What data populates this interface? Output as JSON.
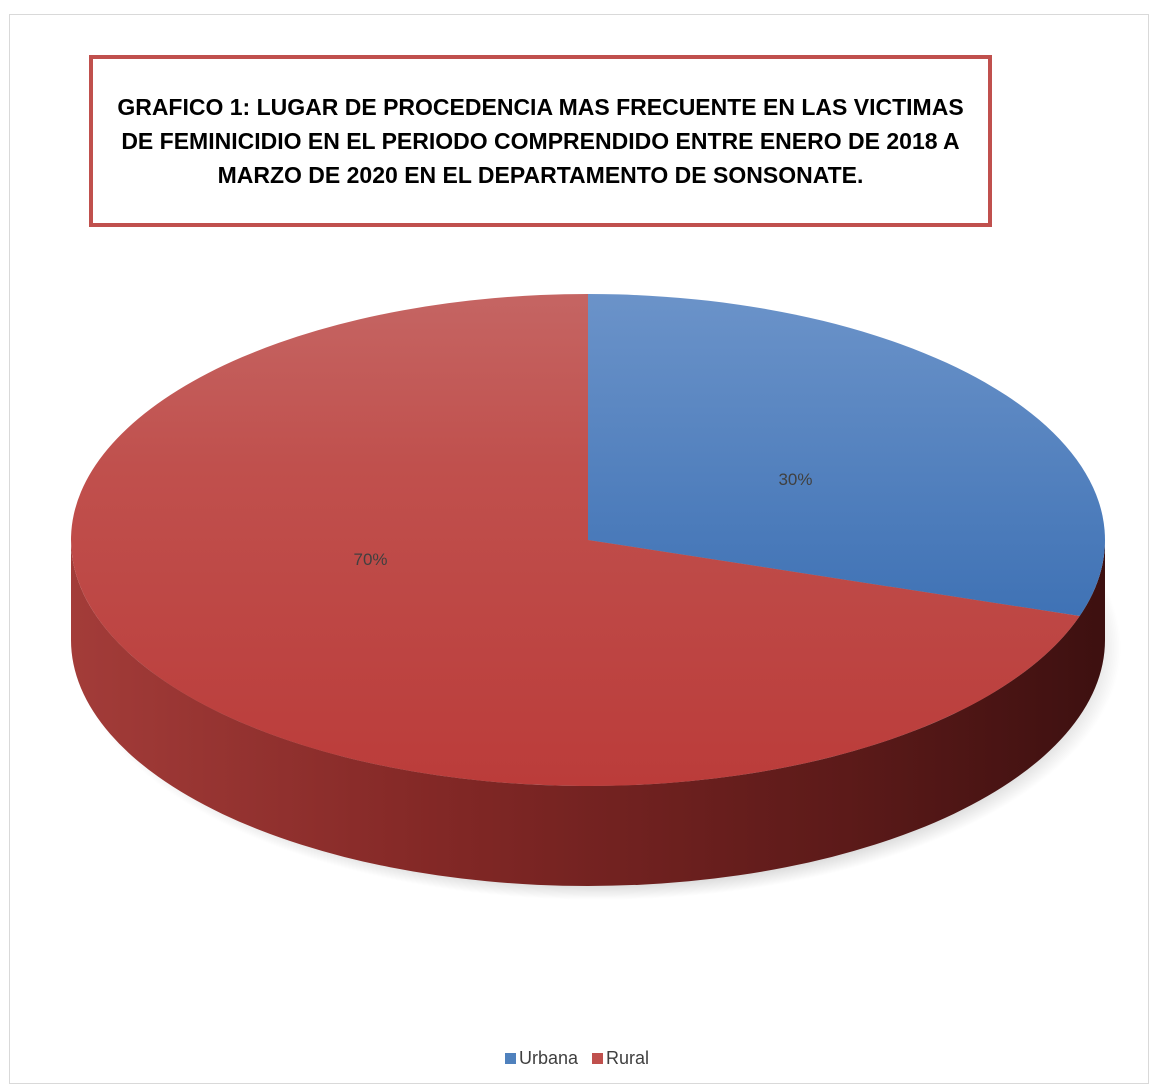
{
  "chart_data": {
    "type": "pie",
    "title": "GRAFICO 1: LUGAR DE PROCEDENCIA MAS FRECUENTE EN LAS VICTIMAS DE  FEMINICIDIO EN EL PERIODO COMPRENDIDO ENTRE ENERO DE 2018 A MARZO DE 2020 EN EL DEPARTAMENTO DE SONSONATE.",
    "categories": [
      "Urbana",
      "Rural"
    ],
    "values": [
      30,
      70
    ],
    "data_labels": [
      "30%",
      "70%"
    ],
    "colors": [
      "#4f81bd",
      "#c0504d"
    ],
    "legend_position": "bottom",
    "style": "3d"
  }
}
